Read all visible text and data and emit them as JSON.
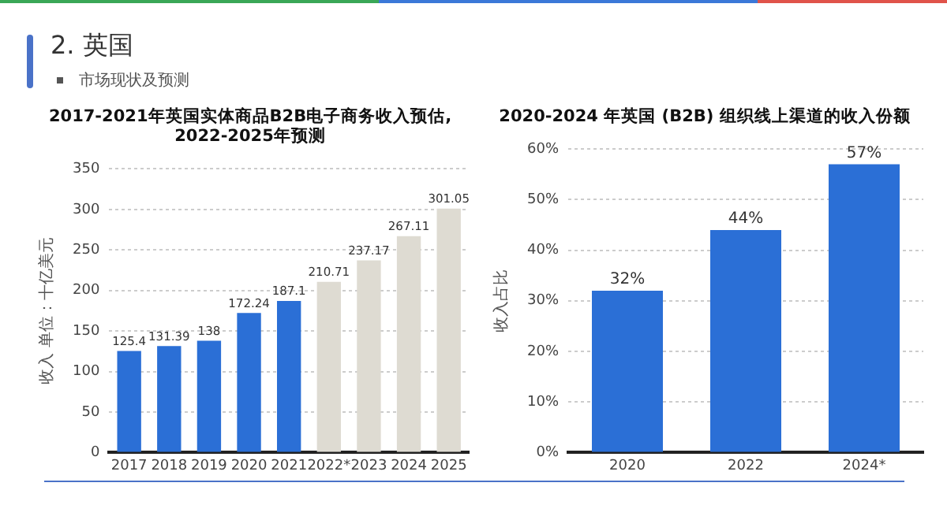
{
  "chart_data": [
    {
      "type": "bar",
      "title": "2017-2021年英国实体商品B2B电子商务收入预估,\n2022-2025年预测",
      "ylabel": "收入 单位：十亿美元",
      "annotations": [
        "2. 英国",
        "市场现状及预测"
      ],
      "categories": [
        "2017",
        "2018",
        "2019",
        "2020",
        "2021",
        "2022*",
        "2023",
        "2024",
        "2025"
      ],
      "values": [
        125.4,
        131.39,
        138,
        172.24,
        187.1,
        210.71,
        237.17,
        267.11,
        301.05
      ],
      "colors": [
        "#2b6fd6",
        "#2b6fd6",
        "#2b6fd6",
        "#2b6fd6",
        "#2b6fd6",
        "#dedbd2",
        "#dedbd2",
        "#dedbd2",
        "#dedbd2"
      ],
      "ylim": [
        0,
        350
      ],
      "yticks": [
        0,
        50,
        100,
        150,
        200,
        250,
        300,
        350
      ],
      "grid": "y",
      "data_labels": true
    },
    {
      "type": "bar",
      "title": "2020-2024 年英国 (B2B) 组织线上渠道的收入份额",
      "ylabel": "收入占比",
      "categories": [
        "2020",
        "2022",
        "2024*"
      ],
      "values": [
        32,
        44,
        57
      ],
      "color": "#2b6fd6",
      "value_labels": [
        "32%",
        "44%",
        "57%"
      ],
      "ylim": [
        0,
        60
      ],
      "yticks": [
        {
          "value": 0,
          "label": "0%"
        },
        {
          "value": 10,
          "label": "10%"
        },
        {
          "value": 20,
          "label": "20%"
        },
        {
          "value": 30,
          "label": "30%"
        },
        {
          "value": 40,
          "label": "40%"
        },
        {
          "value": 50,
          "label": "50%"
        },
        {
          "value": 60,
          "label": "60%"
        }
      ],
      "grid": "y"
    }
  ]
}
